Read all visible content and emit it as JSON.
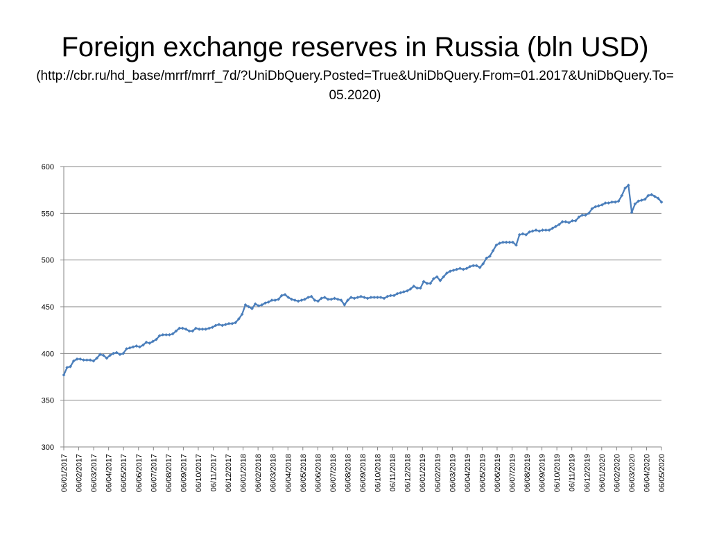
{
  "slide": {
    "title": "Foreign exchange reserves in Russia (bln USD)",
    "subtitle": "(http://cbr.ru/hd_base/mrrf/mrrf_7d/?UniDbQuery.Posted=True&UniDbQuery.From=01.2017&UniDbQuery.To=05.2020)"
  },
  "chart_data": {
    "type": "line",
    "title": "Foreign exchange reserves in Russia (bln USD)",
    "xlabel": "",
    "ylabel": "",
    "ylim": [
      300,
      600
    ],
    "yticks": [
      300,
      350,
      400,
      450,
      500,
      550,
      600
    ],
    "grid": true,
    "legend": "none",
    "colors": {
      "series": "#4a7ebb",
      "grid": "#868686",
      "axis": "#868686"
    },
    "x_ticks": [
      "06/01/2017",
      "06/02/2017",
      "06/03/2017",
      "06/04/2017",
      "06/05/2017",
      "06/06/2017",
      "06/07/2017",
      "06/08/2017",
      "06/09/2017",
      "06/10/2017",
      "06/11/2017",
      "06/12/2017",
      "06/01/2018",
      "06/02/2018",
      "06/03/2018",
      "06/04/2018",
      "06/05/2018",
      "06/06/2018",
      "06/07/2018",
      "06/08/2018",
      "06/09/2018",
      "06/10/2018",
      "06/11/2018",
      "06/12/2018",
      "06/01/2019",
      "06/02/2019",
      "06/03/2019",
      "06/04/2019",
      "06/05/2019",
      "06/06/2019",
      "06/07/2019",
      "06/08/2019",
      "06/09/2019",
      "06/10/2019",
      "06/11/2019",
      "06/12/2019",
      "06/01/2020",
      "06/02/2020",
      "06/03/2020",
      "06/04/2020",
      "06/05/2020"
    ],
    "series": [
      {
        "marker": "diamond",
        "values": [
          377,
          385,
          386,
          392,
          394,
          394,
          393,
          393,
          393,
          392,
          395,
          399,
          398,
          395,
          398,
          400,
          401,
          399,
          400,
          405,
          406,
          407,
          408,
          407,
          409,
          412,
          411,
          413,
          415,
          419,
          420,
          420,
          420,
          421,
          424,
          427,
          427,
          426,
          424,
          424,
          427,
          426,
          426,
          426,
          427,
          428,
          430,
          431,
          430,
          431,
          432,
          432,
          433,
          437,
          442,
          452,
          450,
          448,
          453,
          451,
          452,
          454,
          455,
          457,
          457,
          458,
          462,
          463,
          460,
          458,
          457,
          456,
          457,
          458,
          460,
          461,
          457,
          456,
          459,
          460,
          458,
          458,
          459,
          458,
          457,
          452,
          457,
          460,
          459,
          460,
          461,
          460,
          459,
          460,
          460,
          460,
          460,
          459,
          461,
          462,
          462,
          464,
          465,
          466,
          467,
          469,
          472,
          470,
          470,
          477,
          475,
          475,
          480,
          482,
          478,
          482,
          486,
          488,
          489,
          490,
          491,
          490,
          491,
          493,
          494,
          494,
          492,
          496,
          502,
          504,
          510,
          516,
          518,
          519,
          519,
          519,
          519,
          516,
          527,
          528,
          527,
          530,
          531,
          532,
          531,
          532,
          532,
          532,
          534,
          536,
          538,
          541,
          541,
          540,
          542,
          542,
          546,
          548,
          548,
          550,
          555,
          557,
          558,
          559,
          561,
          561,
          562,
          562,
          563,
          569,
          577,
          580,
          551,
          560,
          563,
          564,
          565,
          569,
          570,
          568,
          566,
          562
        ]
      }
    ]
  }
}
